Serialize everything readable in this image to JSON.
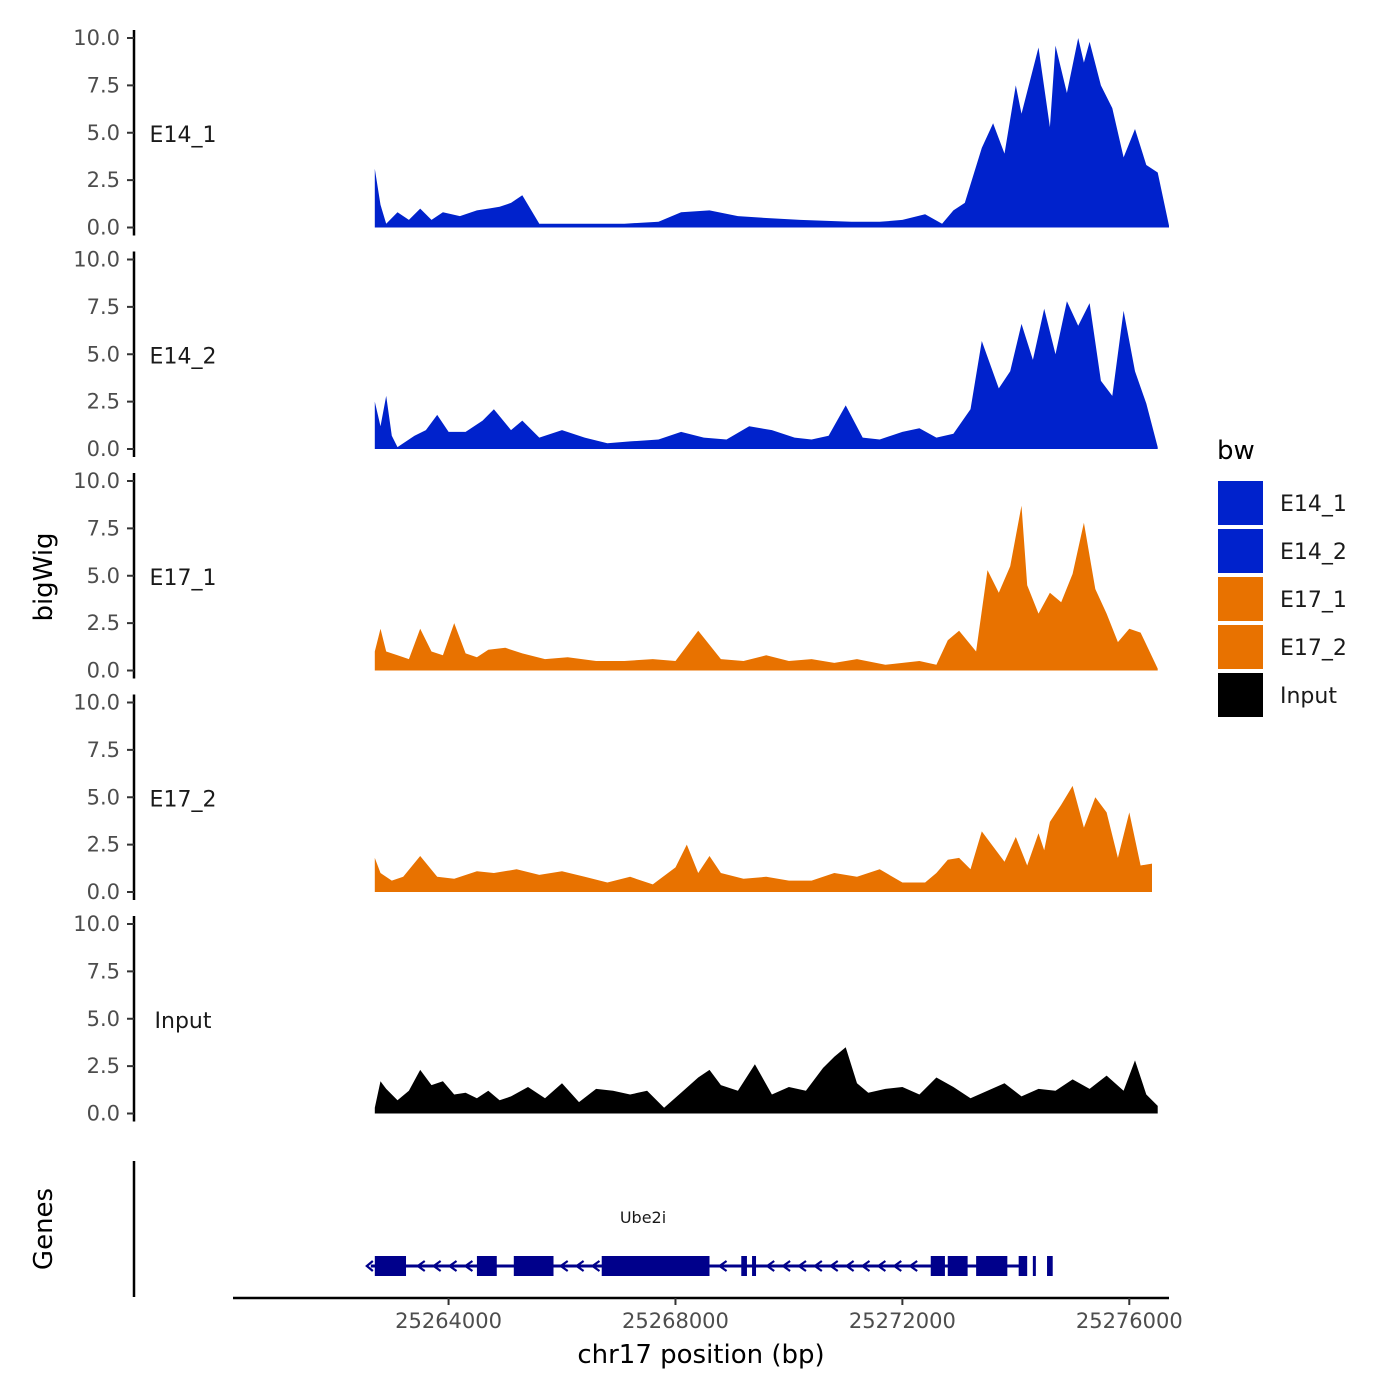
{
  "chart_data": {
    "type": "area",
    "chromosome": "chr17",
    "xlabel": "chr17 position (bp)",
    "ylabel": "bigWig",
    "genes_label": "Genes",
    "xlim": [
      25260200,
      25276700
    ],
    "x_ticks": [
      25264000,
      25268000,
      25272000,
      25276000
    ],
    "x_tick_labels": [
      "25264000",
      "25268000",
      "25272000",
      "25276000"
    ],
    "ylim": [
      0,
      10
    ],
    "y_ticks": [
      0,
      2.5,
      5,
      7.5,
      10
    ],
    "y_tick_labels": [
      "0.0",
      "2.5",
      "5.0",
      "7.5",
      "10.0"
    ],
    "legend": {
      "title": "bw",
      "position": "right",
      "entries": [
        {
          "name": "E14_1",
          "color": "#0022CC"
        },
        {
          "name": "E14_2",
          "color": "#0022CC"
        },
        {
          "name": "E17_1",
          "color": "#E87200"
        },
        {
          "name": "E17_2",
          "color": "#E87200"
        },
        {
          "name": "Input",
          "color": "#000000"
        }
      ]
    },
    "tracks": [
      {
        "name": "E14_1",
        "color": "#0022CC",
        "x": [
          25262700,
          25262800,
          25262900,
          25263100,
          25263300,
          25263500,
          25263700,
          25263900,
          25264200,
          25264500,
          25264700,
          25264900,
          25265100,
          25265300,
          25265600,
          25266100,
          25266600,
          25267100,
          25267700,
          25268100,
          25268600,
          25269100,
          25269600,
          25270200,
          25271100,
          25271600,
          25272000,
          25272400,
          25272700,
          25272900,
          25273100,
          25273400,
          25273600,
          25273800,
          25274000,
          25274100,
          25274400,
          25274600,
          25274700,
          25274900,
          25275100,
          25275200,
          25275300,
          25275500,
          25275700,
          25275900,
          25276100,
          25276300,
          25276500,
          25276700
        ],
        "values": [
          3.1,
          1.2,
          0.2,
          0.8,
          0.4,
          1.0,
          0.4,
          0.8,
          0.6,
          0.9,
          1.0,
          1.1,
          1.3,
          1.7,
          0.2,
          0.2,
          0.2,
          0.2,
          0.3,
          0.8,
          0.9,
          0.6,
          0.5,
          0.4,
          0.3,
          0.3,
          0.4,
          0.7,
          0.2,
          0.9,
          1.3,
          4.2,
          5.5,
          3.9,
          7.5,
          6.0,
          9.5,
          5.3,
          9.6,
          7.1,
          10.0,
          8.7,
          9.8,
          7.5,
          6.3,
          3.7,
          5.2,
          3.3,
          2.9,
          0.1
        ]
      },
      {
        "name": "E14_2",
        "color": "#0022CC",
        "x": [
          25262700,
          25262800,
          25262900,
          25263000,
          25263100,
          25263400,
          25263600,
          25263800,
          25264000,
          25264300,
          25264600,
          25264800,
          25265100,
          25265300,
          25265600,
          25266000,
          25266400,
          25266800,
          25267200,
          25267700,
          25268100,
          25268500,
          25268900,
          25269300,
          25269700,
          25270100,
          25270400,
          25270700,
          25271000,
          25271300,
          25271600,
          25272000,
          25272300,
          25272600,
          25272900,
          25273200,
          25273400,
          25273700,
          25273900,
          25274100,
          25274300,
          25274500,
          25274700,
          25274900,
          25275100,
          25275300,
          25275500,
          25275700,
          25275900,
          25276100,
          25276300,
          25276500
        ],
        "values": [
          2.5,
          1.2,
          2.8,
          0.7,
          0.1,
          0.7,
          1.0,
          1.8,
          0.9,
          0.9,
          1.5,
          2.1,
          1.0,
          1.5,
          0.6,
          1.0,
          0.6,
          0.3,
          0.4,
          0.5,
          0.9,
          0.6,
          0.5,
          1.2,
          1.0,
          0.6,
          0.5,
          0.7,
          2.3,
          0.6,
          0.5,
          0.9,
          1.1,
          0.6,
          0.8,
          2.1,
          5.7,
          3.2,
          4.1,
          6.6,
          4.7,
          7.4,
          5.0,
          7.8,
          6.5,
          7.7,
          3.6,
          2.8,
          7.3,
          4.1,
          2.4,
          0.1
        ]
      },
      {
        "name": "E17_1",
        "color": "#E87200",
        "x": [
          25262700,
          25262800,
          25262900,
          25263100,
          25263300,
          25263500,
          25263700,
          25263900,
          25264100,
          25264300,
          25264500,
          25264700,
          25265000,
          25265300,
          25265700,
          25266100,
          25266600,
          25267100,
          25267600,
          25268000,
          25268400,
          25268800,
          25269200,
          25269600,
          25270000,
          25270400,
          25270800,
          25271200,
          25271700,
          25272300,
          25272600,
          25272800,
          25273000,
          25273300,
          25273500,
          25273700,
          25273900,
          25274100,
          25274200,
          25274400,
          25274600,
          25274800,
          25275000,
          25275200,
          25275400,
          25275600,
          25275800,
          25276000,
          25276200,
          25276500
        ],
        "values": [
          1.0,
          2.2,
          1.0,
          0.8,
          0.6,
          2.2,
          1.0,
          0.8,
          2.5,
          0.9,
          0.7,
          1.1,
          1.2,
          0.9,
          0.6,
          0.7,
          0.5,
          0.5,
          0.6,
          0.5,
          2.1,
          0.6,
          0.5,
          0.8,
          0.5,
          0.6,
          0.4,
          0.6,
          0.3,
          0.5,
          0.3,
          1.6,
          2.1,
          1.0,
          5.3,
          4.1,
          5.5,
          8.7,
          4.5,
          3.0,
          4.1,
          3.6,
          5.1,
          7.8,
          4.3,
          3.0,
          1.5,
          2.2,
          2.0,
          0.1
        ]
      },
      {
        "name": "E17_2",
        "color": "#E87200",
        "x": [
          25262700,
          25262800,
          25263000,
          25263200,
          25263500,
          25263800,
          25264100,
          25264500,
          25264800,
          25265200,
          25265600,
          25266000,
          25266400,
          25266800,
          25267200,
          25267600,
          25268000,
          25268200,
          25268400,
          25268600,
          25268800,
          25269200,
          25269600,
          25270000,
          25270400,
          25270800,
          25271200,
          25271600,
          25272000,
          25272400,
          25272600,
          25272800,
          25273000,
          25273200,
          25273400,
          25273600,
          25273800,
          25274000,
          25274200,
          25274400,
          25274500,
          25274600,
          25274800,
          25275000,
          25275200,
          25275400,
          25275600,
          25275800,
          25276000,
          25276200,
          25276400
        ],
        "values": [
          1.8,
          1.0,
          0.6,
          0.8,
          1.9,
          0.8,
          0.7,
          1.1,
          1.0,
          1.2,
          0.9,
          1.1,
          0.8,
          0.5,
          0.8,
          0.4,
          1.3,
          2.5,
          1.0,
          1.9,
          1.0,
          0.7,
          0.8,
          0.6,
          0.6,
          1.0,
          0.8,
          1.2,
          0.5,
          0.5,
          1.0,
          1.7,
          1.8,
          1.2,
          3.2,
          2.4,
          1.6,
          2.9,
          1.4,
          3.1,
          2.2,
          3.7,
          4.6,
          5.6,
          3.4,
          5.0,
          4.2,
          1.8,
          4.2,
          1.4,
          1.5
        ]
      },
      {
        "name": "Input",
        "color": "#000000",
        "x": [
          25262700,
          25262800,
          25262900,
          25263100,
          25263300,
          25263500,
          25263700,
          25263900,
          25264100,
          25264300,
          25264500,
          25264700,
          25264900,
          25265100,
          25265400,
          25265700,
          25266000,
          25266300,
          25266600,
          25266900,
          25267200,
          25267500,
          25267800,
          25268100,
          25268400,
          25268600,
          25268800,
          25269100,
          25269400,
          25269700,
          25270000,
          25270300,
          25270600,
          25270800,
          25271000,
          25271200,
          25271400,
          25271700,
          25272000,
          25272300,
          25272600,
          25272900,
          25273200,
          25273500,
          25273800,
          25274100,
          25274400,
          25274700,
          25275000,
          25275300,
          25275600,
          25275900,
          25276100,
          25276300,
          25276500
        ],
        "values": [
          0.3,
          1.7,
          1.3,
          0.7,
          1.2,
          2.3,
          1.5,
          1.7,
          1.0,
          1.1,
          0.8,
          1.2,
          0.7,
          0.9,
          1.4,
          0.8,
          1.6,
          0.6,
          1.3,
          1.2,
          1.0,
          1.2,
          0.3,
          1.1,
          1.9,
          2.3,
          1.5,
          1.2,
          2.6,
          1.0,
          1.4,
          1.2,
          2.4,
          3.0,
          3.5,
          1.6,
          1.1,
          1.3,
          1.4,
          1.0,
          1.9,
          1.4,
          0.8,
          1.2,
          1.6,
          0.9,
          1.3,
          1.2,
          1.8,
          1.3,
          2.0,
          1.2,
          2.8,
          1.0,
          0.4
        ]
      }
    ],
    "gene": {
      "name": "Ube2i",
      "strand": "-",
      "start": 25262700,
      "end": 25274100,
      "color": "#00008B",
      "exons": [
        [
          25262700,
          25263250
        ],
        [
          25264500,
          25264850
        ],
        [
          25265150,
          25265850
        ],
        [
          25266700,
          25268600
        ],
        [
          25269160,
          25269260
        ],
        [
          25269350,
          25269420
        ],
        [
          25272500,
          25272750
        ],
        [
          25272800,
          25273150
        ],
        [
          25273300,
          25273850
        ],
        [
          25274050,
          25274200
        ],
        [
          25274300,
          25274350
        ],
        [
          25274550,
          25274650
        ]
      ]
    }
  }
}
